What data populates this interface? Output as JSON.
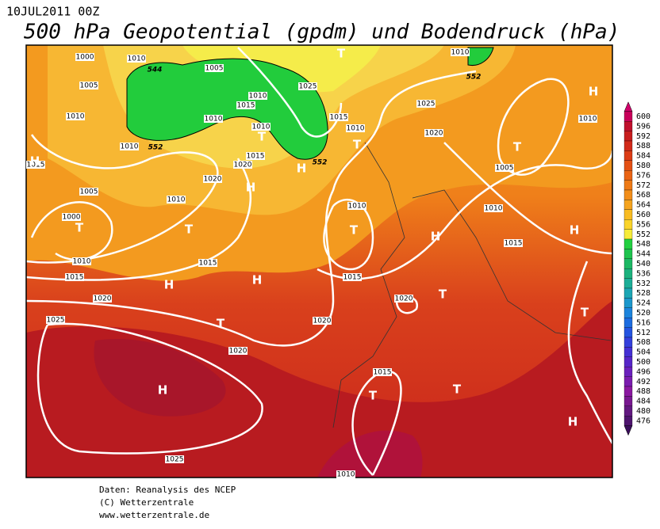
{
  "header": {
    "date": "10JUL2011 00Z",
    "title": "500 hPa Geopotential (gpdm) und Bodendruck (hPa)"
  },
  "map": {
    "isobar_labels": [
      "1000",
      "1010",
      "1005",
      "1005",
      "1025",
      "1010",
      "1015",
      "1010",
      "1010",
      "1015",
      "1010",
      "1010",
      "1010",
      "1015",
      "1020",
      "1015",
      "1020",
      "1005",
      "1010",
      "1010",
      "1000",
      "1015",
      "1010",
      "1015",
      "1015",
      "1020",
      "1025",
      "1020",
      "1020",
      "1020",
      "1015",
      "1025",
      "1010",
      "1025",
      "1020",
      "1005",
      "1010",
      "1015",
      "1010",
      "1010"
    ],
    "contour_labels": [
      "552",
      "552",
      "552",
      "544"
    ],
    "pressure_centers": [
      "T",
      "H",
      "T",
      "T",
      "H",
      "T",
      "H",
      "H",
      "T",
      "T",
      "T",
      "H",
      "H",
      "H",
      "H",
      "T",
      "T",
      "T",
      "H",
      "T",
      "T",
      "H"
    ]
  },
  "scale": {
    "labels": [
      600,
      596,
      592,
      588,
      584,
      580,
      576,
      572,
      568,
      564,
      560,
      556,
      552,
      548,
      544,
      540,
      536,
      532,
      528,
      524,
      520,
      516,
      512,
      508,
      504,
      500,
      496,
      492,
      488,
      484,
      480,
      476
    ]
  },
  "footer": [
    "Daten: Reanalysis des NCEP",
    "(C) Wetterzentrale",
    "www.wetterzentrale.de"
  ]
}
